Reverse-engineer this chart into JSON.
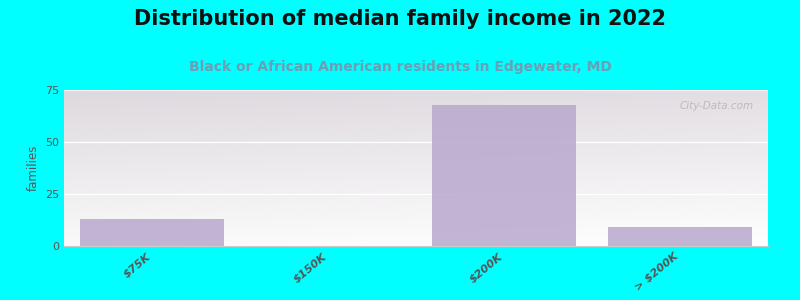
{
  "title": "Distribution of median family income in 2022",
  "subtitle": "Black or African American residents in Edgewater, MD",
  "categories": [
    "$75K",
    "$150K",
    "$200K",
    "> $200K"
  ],
  "values": [
    13,
    0,
    68,
    9
  ],
  "bar_color": "#b8a8cc",
  "bg_color": "#00ffff",
  "plot_bg_top_left": "#d8efd0",
  "plot_bg_bottom": "#f5faf2",
  "plot_bg_right": "#e8f0ec",
  "ylabel": "families",
  "ylim": [
    0,
    75
  ],
  "yticks": [
    0,
    25,
    50,
    75
  ],
  "title_fontsize": 15,
  "subtitle_fontsize": 10,
  "tick_label_fontsize": 8,
  "subtitle_color": "#6a9fb5",
  "title_color": "#111111",
  "watermark": "City-Data.com",
  "grid_color": "#e0ece0"
}
